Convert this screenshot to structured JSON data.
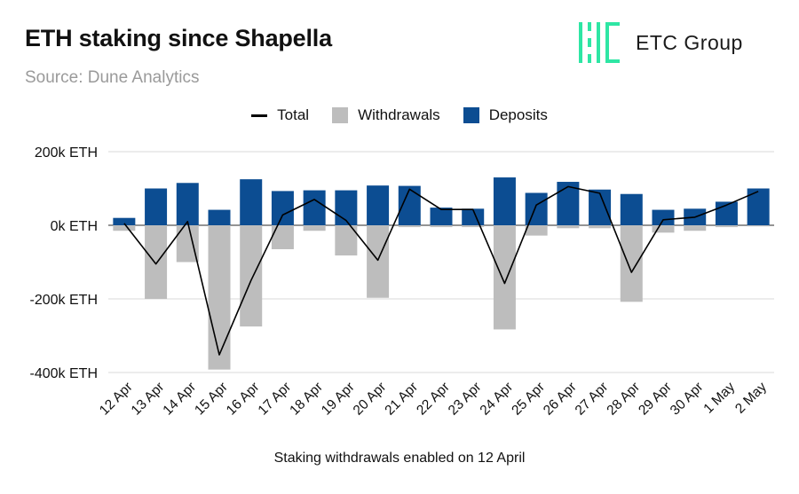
{
  "header": {
    "title": "ETH staking since Shapella",
    "subtitle": "Source: Dune Analytics",
    "logo_text": "ETC Group"
  },
  "colors": {
    "deposits": "#0c4d92",
    "withdrawals": "#bdbdbd",
    "total": "#000000",
    "logo_green": "#2ee6a4"
  },
  "footnote": "Staking withdrawals enabled on 12 April",
  "chart_data": {
    "type": "bar",
    "stacked": true,
    "categories": [
      "12 Apr",
      "13 Apr",
      "14 Apr",
      "15 Apr",
      "16 Apr",
      "17 Apr",
      "18 Apr",
      "19 Apr",
      "20 Apr",
      "21 Apr",
      "22 Apr",
      "23 Apr",
      "24 Apr",
      "25 Apr",
      "26 Apr",
      "27 Apr",
      "28 Apr",
      "29 Apr",
      "30 Apr",
      "1 May",
      "2 May"
    ],
    "series": [
      {
        "name": "Withdrawals",
        "kind": "bar",
        "values": [
          -15000,
          -200000,
          -100000,
          -392000,
          -275000,
          -65000,
          -15000,
          -82000,
          -197000,
          -5000,
          -5000,
          -5000,
          -283000,
          -28000,
          -8000,
          -8000,
          -208000,
          -20000,
          -15000,
          -5000,
          -3000
        ]
      },
      {
        "name": "Deposits",
        "kind": "bar",
        "values": [
          20000,
          100000,
          115000,
          42000,
          125000,
          93000,
          95000,
          95000,
          108000,
          107000,
          48000,
          45000,
          130000,
          88000,
          118000,
          97000,
          85000,
          42000,
          45000,
          64000,
          100000
        ]
      },
      {
        "name": "Total",
        "kind": "line",
        "values": [
          5000,
          -105000,
          10000,
          -352000,
          -150000,
          28000,
          70000,
          13000,
          -95000,
          98000,
          43000,
          43000,
          -158000,
          55000,
          105000,
          87000,
          -128000,
          15000,
          22000,
          55000,
          92000
        ]
      }
    ],
    "yticks": [
      "200k ETH",
      "0k ETH",
      "-200k ETH",
      "-400k ETH"
    ],
    "ytick_values": [
      200000,
      0,
      -200000,
      -400000
    ],
    "ylim": [
      -400000,
      200000
    ],
    "grid": true,
    "legend_position": "top-center",
    "xlabel": "",
    "ylabel": ""
  }
}
